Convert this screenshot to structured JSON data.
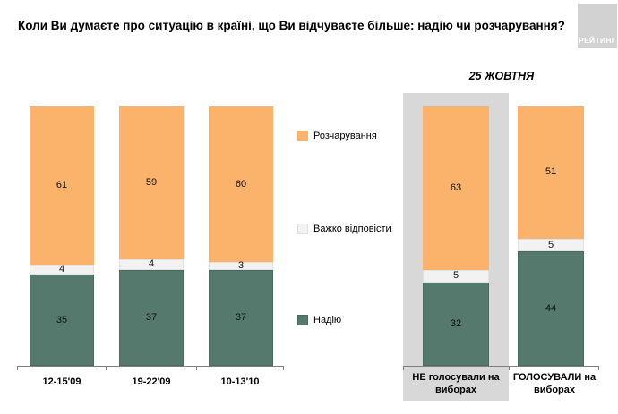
{
  "logo": {
    "text": "РЕЙТИНГ"
  },
  "legend": [
    {
      "label": "Розчарування",
      "color": "#FBB26B",
      "border": "#FBB26B"
    },
    {
      "label": "Важко відповісти",
      "color": "#F2F2F2",
      "border": "#E0E0E0"
    },
    {
      "label": "Надію",
      "color": "#55796D",
      "border": "#4A6A5F"
    }
  ],
  "chart_data": {
    "type": "bar",
    "subtype": "stacked-column",
    "title": "Коли Ви думаєте про ситуацію в країні, що Ви відчуваєте більше: надію чи розчарування?",
    "annotation": "25 ЖОВТНЯ",
    "categories": [
      "12-15'09",
      "19-22'09",
      "10-13'10",
      "НЕ голосували на виборах",
      "ГОЛОСУВАЛИ на виборах"
    ],
    "series": [
      {
        "name": "Надію",
        "key": "hope",
        "color": "#55796D",
        "border": "#4A6A5F",
        "values": [
          35,
          37,
          37,
          32,
          44
        ]
      },
      {
        "name": "Важко відповісти",
        "key": "hard-to-answer",
        "color": "#F2F2F2",
        "border": "#E2E2E2",
        "values": [
          4,
          4,
          3,
          5,
          5
        ]
      },
      {
        "name": "Розчарування",
        "key": "disappointment",
        "color": "#FBB26B",
        "border": "#FBB26B",
        "values": [
          61,
          59,
          60,
          63,
          51
        ]
      }
    ],
    "highlighted_category": "НЕ голосували на виборах",
    "ylim": [
      0,
      100
    ],
    "grid": false,
    "value_labels": true,
    "legend_position": "middle-left"
  }
}
